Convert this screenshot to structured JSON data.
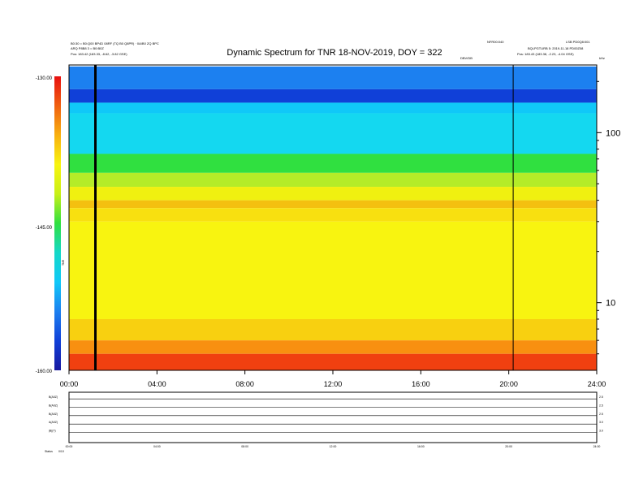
{
  "header": {
    "title": "Dynamic Spectrum for TNR 18-NOV-2019, DOY = 322",
    "top_left_line1": "B0:30 = B0:Q00 BP4D 08RF (TQ B0 Q8PR) · 0A/B0 ZQ BPC",
    "top_left_line2": "ARQ P8B8 3 = B0:B0Z",
    "pos_start": "Pos: 183.42 (183.33, -8.62, -3.82 GSE)",
    "top_right_a": "NFR00:040",
    "top_right_b": "LSB PD0Q8:001",
    "top_right_c": "BQLPGTURB 5: 2019-11-18 PD00Z08",
    "pos_end": "Pos: 183.43 (183.38, -2.23, -4.04 GSE)",
    "mid_tag": "DBV/DB",
    "unit_tag": "kHz",
    "color_axis_tag": "TNR"
  },
  "colorbar": {
    "ticks": [
      "-130.00",
      "-145.00",
      "-160.00"
    ],
    "colors": [
      "#1818a0",
      "#1040d8",
      "#1c80f0",
      "#10c8f8",
      "#14d8c8",
      "#30e040",
      "#c8f018",
      "#f8f410",
      "#f8b010",
      "#f06010",
      "#e81010"
    ]
  },
  "chart_data": {
    "type": "heatmap",
    "title": "Dynamic Spectrum for TNR 18-NOV-2019, DOY = 322",
    "x": {
      "ticks": [
        "00:00",
        "04:00",
        "08:00",
        "12:00",
        "16:00",
        "20:00",
        "24:00"
      ],
      "range_hours": [
        0,
        24
      ]
    },
    "y": {
      "scale": "log",
      "unit": "kHz",
      "ticks": [
        {
          "label": "100",
          "value": 100
        },
        {
          "label": "10",
          "value": 10
        }
      ],
      "range": [
        4,
        250
      ]
    },
    "z": {
      "unit": "dB",
      "range": [
        -160,
        -130
      ]
    },
    "frequency_bands": [
      {
        "from": 180,
        "to": 245,
        "color": "#1c80f0"
      },
      {
        "from": 150,
        "to": 180,
        "color": "#1040d8"
      },
      {
        "from": 130,
        "to": 150,
        "color": "#10c8f8"
      },
      {
        "from": 75,
        "to": 130,
        "color": "#14d8f0"
      },
      {
        "from": 58,
        "to": 75,
        "color": "#30e040"
      },
      {
        "from": 48,
        "to": 58,
        "color": "#b4ec28"
      },
      {
        "from": 40,
        "to": 48,
        "color": "#f0f010"
      },
      {
        "from": 36,
        "to": 40,
        "color": "#f4c010"
      },
      {
        "from": 30,
        "to": 36,
        "color": "#f8e010"
      },
      {
        "from": 8,
        "to": 30,
        "color": "#f8f410"
      },
      {
        "from": 6,
        "to": 8,
        "color": "#f8d010"
      },
      {
        "from": 5,
        "to": 6,
        "color": "#f89010"
      },
      {
        "from": 4,
        "to": 5,
        "color": "#f04010"
      }
    ],
    "data_gaps_hours": [
      1.2,
      20.2
    ]
  },
  "lower_panel": {
    "rows": [
      {
        "label": "B(A0Z)",
        "right": "2.5"
      },
      {
        "label": "B(A0Z)",
        "right": "2.5"
      },
      {
        "label": "B(A0Z)",
        "right": "2.5"
      },
      {
        "label": "A(A0Z)",
        "right": "3.0"
      },
      {
        "label": "|B|(T)",
        "right": "3.0"
      }
    ],
    "x_ticks": [
      "00:00",
      "04:00",
      "08:00",
      "12:00",
      "16:00",
      "20:00",
      "24:00"
    ],
    "footer_label": "Status",
    "footer_value": "0/10"
  }
}
